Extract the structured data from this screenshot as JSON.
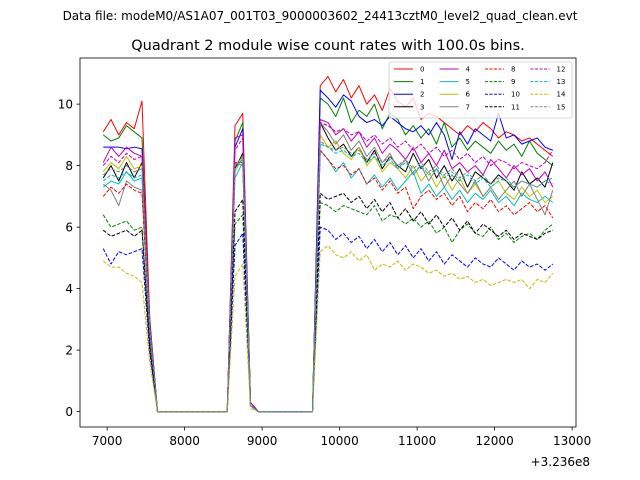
{
  "chart_data": {
    "type": "line",
    "suptitle": "Data file: modeM0/AS1A07_001T03_9000003602_24413cztM0_level2_quad_clean.evt",
    "title": "Quadrant 2 module wise count rates with 100.0s bins.",
    "xlabel": "",
    "ylabel": "",
    "x_offset_label": "+3.236e8",
    "xlim": [
      6650,
      13050
    ],
    "ylim": [
      -0.5,
      11.5
    ],
    "xticks": [
      7000,
      8000,
      9000,
      10000,
      11000,
      12000,
      13000
    ],
    "xtick_labels": [
      "7000",
      "8000",
      "9000",
      "10000",
      "11000",
      "12000",
      "13000"
    ],
    "yticks": [
      0,
      2,
      4,
      6,
      8,
      10
    ],
    "ytick_labels": [
      "0",
      "2",
      "4",
      "6",
      "8",
      "10"
    ],
    "grid": false,
    "legend_position": "top-right",
    "legend_columns": 4,
    "x": [
      6950,
      7050,
      7150,
      7250,
      7350,
      7450,
      7550,
      7650,
      7750,
      7850,
      7950,
      8050,
      8150,
      8250,
      8350,
      8450,
      8550,
      8650,
      8750,
      8850,
      8950,
      9050,
      9150,
      9250,
      9350,
      9450,
      9550,
      9650,
      9750,
      9850,
      9950,
      10050,
      10150,
      10250,
      10350,
      10450,
      10550,
      10650,
      10750,
      10850,
      10950,
      11050,
      11150,
      11250,
      11350,
      11450,
      11550,
      11650,
      11750,
      11850,
      11950,
      12050,
      12150,
      12250,
      12350,
      12450,
      12550,
      12650,
      12750
    ],
    "series": [
      {
        "name": "0",
        "color": "#ff0000",
        "dash": "solid",
        "values": [
          9.1,
          9.5,
          9.0,
          9.4,
          9.2,
          10.1,
          3.0,
          0,
          0,
          0,
          0,
          0,
          0,
          0,
          0,
          0,
          0,
          9.3,
          9.7,
          0.3,
          0,
          0,
          0,
          0,
          0,
          0,
          0,
          0,
          10.6,
          10.9,
          10.4,
          10.8,
          10.2,
          10.6,
          10.0,
          10.3,
          9.8,
          10.5,
          10.1,
          9.9,
          10.2,
          9.5,
          9.7,
          9.6,
          9.4,
          9.2,
          9.0,
          9.3,
          9.1,
          9.4,
          9.2,
          8.9,
          9.1,
          9.0,
          8.8,
          8.9,
          8.7,
          8.5,
          8.3
        ]
      },
      {
        "name": "1",
        "color": "#008000",
        "dash": "solid",
        "values": [
          9.0,
          8.8,
          8.9,
          9.3,
          9.1,
          8.9,
          3.0,
          0,
          0,
          0,
          0,
          0,
          0,
          0,
          0,
          0,
          0,
          8.8,
          9.4,
          0.3,
          0,
          0,
          0,
          0,
          0,
          0,
          0,
          0,
          10.2,
          10.0,
          9.6,
          10.2,
          9.4,
          9.8,
          9.6,
          10.0,
          9.2,
          9.7,
          9.5,
          9.0,
          9.3,
          8.9,
          9.2,
          8.7,
          9.4,
          8.6,
          8.9,
          8.5,
          8.8,
          8.6,
          8.4,
          8.8,
          8.5,
          8.7,
          8.3,
          8.8,
          8.4,
          8.2,
          8.0
        ]
      },
      {
        "name": "2",
        "color": "#0000ff",
        "dash": "solid",
        "values": [
          8.6,
          8.6,
          8.6,
          8.55,
          8.6,
          8.55,
          2.9,
          0,
          0,
          0,
          0,
          0,
          0,
          0,
          0,
          0,
          0,
          8.6,
          9.2,
          0.3,
          0,
          0,
          0,
          0,
          0,
          0,
          0,
          0,
          10.45,
          10.2,
          9.9,
          10.3,
          10.1,
          9.6,
          9.4,
          9.5,
          9.3,
          9.6,
          9.4,
          9.2,
          9.1,
          9.3,
          9.0,
          9.4,
          9.0,
          8.2,
          9.1,
          8.7,
          9.2,
          9.0,
          8.8,
          9.7,
          8.9,
          9.0,
          8.7,
          8.8,
          8.9,
          8.6,
          8.5
        ]
      },
      {
        "name": "3",
        "color": "#000000",
        "dash": "solid",
        "values": [
          7.6,
          8.0,
          7.5,
          8.1,
          7.6,
          8.1,
          2.8,
          0,
          0,
          0,
          0,
          0,
          0,
          0,
          0,
          0,
          0,
          7.9,
          8.4,
          0.2,
          0,
          0,
          0,
          0,
          0,
          0,
          0,
          0,
          9.4,
          8.9,
          8.5,
          8.7,
          8.3,
          8.6,
          8.1,
          8.5,
          7.9,
          8.3,
          8.0,
          7.8,
          8.4,
          7.9,
          8.2,
          7.6,
          8.0,
          7.5,
          7.9,
          7.3,
          7.8,
          7.6,
          7.4,
          7.7,
          7.5,
          7.2,
          7.8,
          7.4,
          7.6,
          7.3,
          8.1
        ]
      },
      {
        "name": "4",
        "color": "#bf00bf",
        "dash": "solid",
        "values": [
          8.1,
          8.6,
          8.3,
          8.6,
          8.4,
          8.3,
          2.9,
          0,
          0,
          0,
          0,
          0,
          0,
          0,
          0,
          0,
          0,
          8.9,
          9.0,
          0.3,
          0,
          0,
          0,
          0,
          0,
          0,
          0,
          0,
          9.5,
          9.4,
          9.0,
          9.2,
          8.8,
          9.1,
          8.6,
          8.9,
          8.4,
          8.7,
          8.5,
          8.2,
          8.6,
          8.1,
          8.4,
          8.0,
          8.5,
          7.9,
          8.1,
          7.8,
          8.0,
          7.7,
          8.2,
          7.9,
          7.6,
          8.0,
          7.7,
          7.9,
          7.5,
          7.8,
          7.3
        ]
      },
      {
        "name": "5",
        "color": "#00bfbf",
        "dash": "solid",
        "values": [
          7.3,
          7.5,
          7.4,
          7.8,
          7.5,
          7.6,
          2.6,
          0,
          0,
          0,
          0,
          0,
          0,
          0,
          0,
          0,
          0,
          7.6,
          8.1,
          0.2,
          0,
          0,
          0,
          0,
          0,
          0,
          0,
          0,
          8.5,
          8.2,
          7.8,
          8.1,
          7.6,
          7.9,
          7.4,
          7.7,
          7.3,
          7.6,
          7.2,
          7.5,
          7.8,
          7.1,
          7.4,
          7.0,
          7.3,
          6.9,
          7.2,
          6.8,
          7.1,
          6.9,
          7.2,
          6.8,
          7.0,
          6.7,
          7.1,
          6.9,
          6.8,
          7.0,
          6.8
        ]
      },
      {
        "name": "6",
        "color": "#bfbf00",
        "dash": "solid",
        "values": [
          7.8,
          8.1,
          7.9,
          8.3,
          7.9,
          8.0,
          2.7,
          0,
          0,
          0,
          0,
          0,
          0,
          0,
          0,
          0,
          0,
          7.8,
          8.3,
          0.2,
          0,
          0,
          0,
          0,
          0,
          0,
          0,
          0,
          9.0,
          8.6,
          8.8,
          8.4,
          8.2,
          8.6,
          8.0,
          8.3,
          7.8,
          8.1,
          7.9,
          7.6,
          8.0,
          7.5,
          7.8,
          7.3,
          7.7,
          7.2,
          7.6,
          7.1,
          7.4,
          7.0,
          7.3,
          7.5,
          7.1,
          6.9,
          7.3,
          7.0,
          7.2,
          6.8,
          7.0
        ]
      },
      {
        "name": "7",
        "color": "#808080",
        "dash": "solid",
        "values": [
          7.4,
          7.2,
          6.7,
          7.5,
          7.3,
          7.2,
          2.6,
          0,
          0,
          0,
          0,
          0,
          0,
          0,
          0,
          0,
          0,
          8.1,
          8.0,
          0.2,
          0,
          0,
          0,
          0,
          0,
          0,
          0,
          0,
          9.4,
          9.1,
          8.7,
          9.0,
          8.5,
          8.8,
          8.3,
          8.6,
          8.1,
          8.4,
          7.9,
          8.2,
          7.7,
          8.0,
          7.5,
          7.9,
          7.3,
          7.7,
          7.4,
          7.1,
          7.5,
          7.0,
          7.3,
          6.9,
          7.2,
          7.5,
          7.0,
          7.4,
          6.9,
          6.4,
          7.2
        ]
      },
      {
        "name": "8",
        "color": "#ff0000",
        "dash": "dashed",
        "values": [
          7.0,
          7.3,
          7.1,
          7.4,
          7.2,
          7.1,
          2.5,
          0,
          0,
          0,
          0,
          0,
          0,
          0,
          0,
          0,
          0,
          8.1,
          8.1,
          0.2,
          0,
          0,
          0,
          0,
          0,
          0,
          0,
          0,
          8.5,
          8.2,
          7.9,
          8.0,
          7.7,
          7.9,
          7.4,
          7.6,
          7.2,
          7.5,
          7.1,
          7.3,
          6.6,
          7.0,
          7.2,
          6.9,
          7.1,
          6.7,
          7.0,
          6.5,
          6.8,
          6.6,
          6.9,
          6.5,
          6.7,
          6.4,
          6.6,
          6.8,
          6.5,
          6.7,
          6.3
        ]
      },
      {
        "name": "9",
        "color": "#008000",
        "dash": "dashed",
        "values": [
          6.4,
          6.0,
          6.1,
          6.2,
          5.9,
          6.0,
          2.2,
          0,
          0,
          0,
          0,
          0,
          0,
          0,
          0,
          0,
          0,
          6.1,
          6.4,
          0.2,
          0,
          0,
          0,
          0,
          0,
          0,
          0,
          0,
          6.8,
          6.7,
          6.5,
          6.7,
          6.6,
          6.5,
          6.4,
          6.7,
          6.2,
          6.4,
          6.3,
          6.1,
          6.3,
          6.0,
          6.2,
          5.8,
          6.0,
          5.5,
          5.9,
          6.1,
          5.8,
          5.7,
          6.0,
          5.6,
          5.8,
          5.5,
          5.7,
          5.8,
          5.6,
          5.9,
          6.1
        ]
      },
      {
        "name": "10",
        "color": "#0000ff",
        "dash": "dashed",
        "values": [
          5.3,
          4.8,
          5.2,
          5.1,
          5.2,
          5.3,
          1.9,
          0,
          0,
          0,
          0,
          0,
          0,
          0,
          0,
          0,
          0,
          5.4,
          5.8,
          0.2,
          0,
          0,
          0,
          0,
          0,
          0,
          0,
          0,
          6.0,
          5.9,
          5.6,
          5.8,
          5.5,
          5.7,
          5.3,
          5.6,
          5.2,
          5.5,
          5.1,
          5.4,
          5.0,
          5.3,
          4.9,
          5.2,
          4.8,
          5.1,
          4.9,
          4.7,
          5.0,
          4.8,
          4.7,
          5.0,
          4.8,
          4.6,
          4.9,
          4.7,
          4.8,
          4.6,
          4.8
        ]
      },
      {
        "name": "11",
        "color": "#000000",
        "dash": "dashed",
        "values": [
          5.9,
          5.7,
          5.8,
          5.9,
          5.7,
          5.9,
          2.1,
          0,
          0,
          0,
          0,
          0,
          0,
          0,
          0,
          0,
          0,
          6.5,
          6.9,
          0.2,
          0,
          0,
          0,
          0,
          0,
          0,
          0,
          0,
          7.1,
          6.9,
          7.0,
          7.1,
          6.8,
          7.0,
          6.6,
          6.9,
          6.5,
          6.8,
          6.3,
          6.6,
          6.2,
          6.5,
          6.1,
          6.4,
          6.0,
          6.3,
          5.9,
          6.2,
          5.8,
          6.1,
          5.9,
          5.7,
          5.9,
          5.6,
          5.8,
          5.7,
          5.6,
          5.8,
          5.9
        ]
      },
      {
        "name": "12",
        "color": "#bf00bf",
        "dash": "dashed",
        "values": [
          8.0,
          8.3,
          8.1,
          8.4,
          8.2,
          8.3,
          2.8,
          0,
          0,
          0,
          0,
          0,
          0,
          0,
          0,
          0,
          0,
          8.5,
          8.9,
          0.3,
          0,
          0,
          0,
          0,
          0,
          0,
          0,
          0,
          9.4,
          9.3,
          9.1,
          9.2,
          9.0,
          9.1,
          8.8,
          9.0,
          8.7,
          8.9,
          8.6,
          8.8,
          8.5,
          8.7,
          8.4,
          8.6,
          8.3,
          8.5,
          8.2,
          8.4,
          8.1,
          8.3,
          8.0,
          8.2,
          8.1,
          7.9,
          8.1,
          8.0,
          7.9,
          8.1,
          8.5
        ]
      },
      {
        "name": "13",
        "color": "#00bfbf",
        "dash": "dashed",
        "values": [
          7.5,
          7.7,
          7.6,
          7.8,
          7.6,
          7.7,
          2.6,
          0,
          0,
          0,
          0,
          0,
          0,
          0,
          0,
          0,
          0,
          7.9,
          8.2,
          0.2,
          0,
          0,
          0,
          0,
          0,
          0,
          0,
          0,
          8.7,
          8.6,
          8.4,
          8.5,
          8.3,
          8.4,
          8.1,
          8.3,
          8.0,
          8.2,
          7.9,
          8.1,
          7.8,
          8.0,
          7.7,
          7.9,
          7.6,
          7.8,
          7.5,
          7.7,
          7.4,
          7.6,
          7.3,
          7.5,
          7.6,
          7.3,
          7.5,
          7.4,
          7.3,
          7.5,
          7.6
        ]
      },
      {
        "name": "14",
        "color": "#bfbf00",
        "dash": "dashed",
        "values": [
          4.9,
          4.7,
          4.7,
          4.5,
          4.4,
          4.2,
          1.6,
          0,
          0,
          0,
          0,
          0,
          0,
          0,
          0,
          0,
          0,
          4.4,
          4.8,
          0.1,
          0,
          0,
          0,
          0,
          0,
          0,
          0,
          0,
          5.2,
          5.4,
          5.1,
          5.0,
          5.2,
          4.9,
          5.1,
          4.6,
          4.8,
          4.7,
          4.9,
          4.6,
          4.8,
          4.7,
          4.5,
          4.6,
          4.4,
          4.5,
          4.3,
          4.4,
          4.2,
          4.3,
          4.1,
          4.2,
          4.3,
          4.2,
          4.3,
          4.0,
          4.3,
          4.2,
          4.5
        ]
      },
      {
        "name": "15",
        "color": "#808080",
        "dash": "dashed",
        "values": [
          7.7,
          7.9,
          7.8,
          8.0,
          7.8,
          7.9,
          2.7,
          0,
          0,
          0,
          0,
          0,
          0,
          0,
          0,
          0,
          0,
          8.0,
          8.3,
          0.2,
          0,
          0,
          0,
          0,
          0,
          0,
          0,
          0,
          8.8,
          8.6,
          8.5,
          8.6,
          8.4,
          8.5,
          8.2,
          8.4,
          8.1,
          8.3,
          8.0,
          8.2,
          7.9,
          8.1,
          7.8,
          8.0,
          7.7,
          7.9,
          7.6,
          7.8,
          7.5,
          7.7,
          7.4,
          7.6,
          7.5,
          7.3,
          7.5,
          7.4,
          7.3,
          7.5,
          7.4
        ]
      }
    ]
  }
}
